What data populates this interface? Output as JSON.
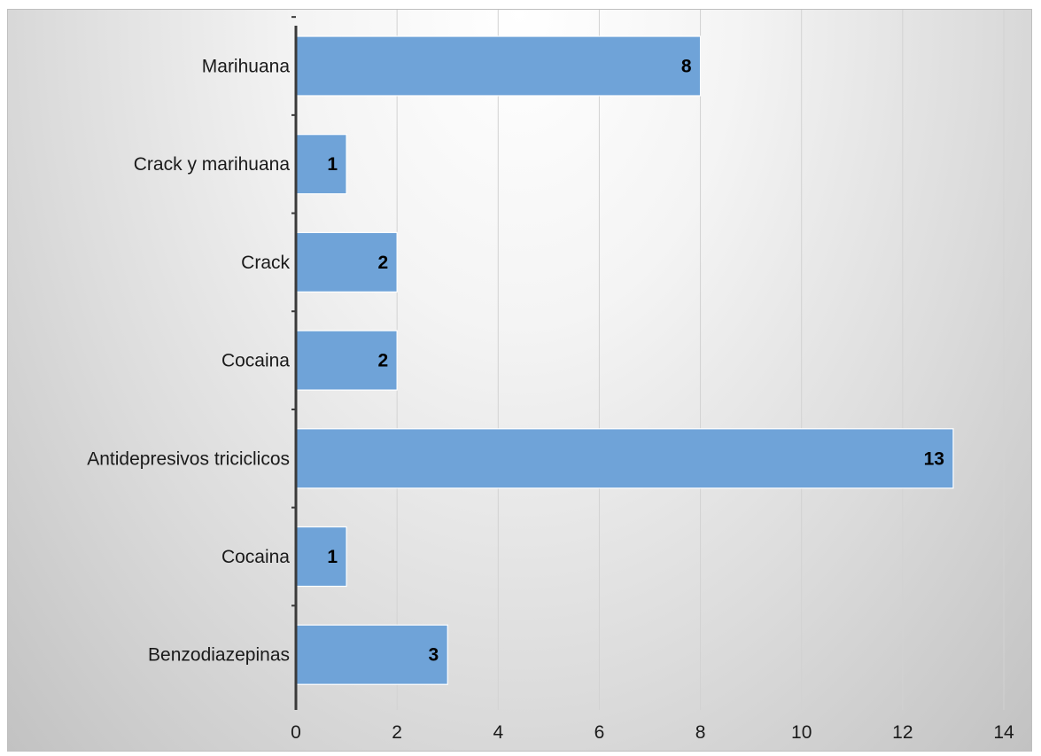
{
  "chart_data": {
    "type": "bar",
    "orientation": "horizontal",
    "title": "",
    "xlabel": "",
    "ylabel": "",
    "categories": [
      "Marihuana",
      "Crack y marihuana",
      "Crack",
      "Cocaina",
      "Antidepresivos triciclicos",
      "Cocaina",
      "Benzodiazepinas"
    ],
    "values": [
      8,
      1,
      2,
      2,
      13,
      1,
      3
    ],
    "xlim": [
      0,
      14
    ],
    "x_ticks": [
      0,
      2,
      4,
      6,
      8,
      10,
      12,
      14
    ],
    "grid": "vertical",
    "legend": "none",
    "data_labels": "inside-end",
    "colors": {
      "bar_fill": "#6fa3d8",
      "bar_stroke": "#ffffff",
      "gridline": "#d2d2d2",
      "axis": "#3a3a3a"
    }
  }
}
